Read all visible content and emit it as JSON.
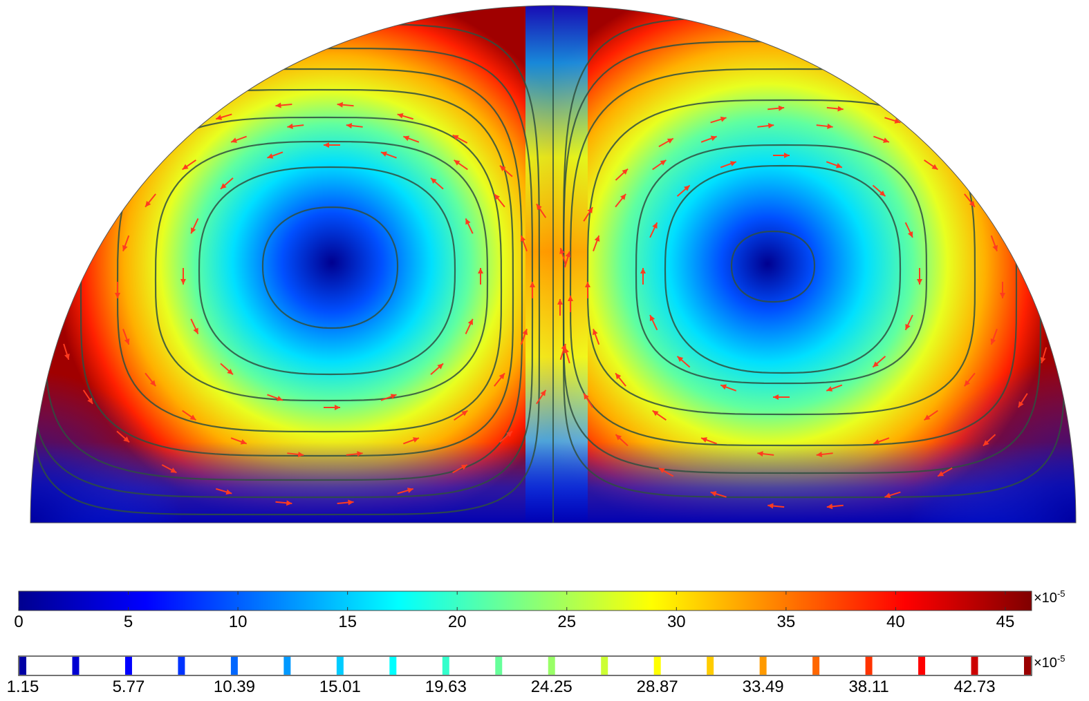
{
  "figure": {
    "description_free": true,
    "field_colormap": [
      "#00008f",
      "#0000ff",
      "#0080ff",
      "#00ffff",
      "#80ff80",
      "#ffff00",
      "#ff8000",
      "#ff0000",
      "#800000"
    ],
    "streamline_color": "#2f4f3f",
    "arrow_color": "#ff3b1f"
  },
  "colorbar": {
    "ticks": [
      "0",
      "5",
      "10",
      "15",
      "20",
      "25",
      "30",
      "35",
      "40",
      "45"
    ],
    "tick_values": [
      0,
      5,
      10,
      15,
      20,
      25,
      30,
      35,
      40,
      45
    ],
    "range": [
      0,
      46.2
    ],
    "exponent_prefix": "×10",
    "exponent": "-5"
  },
  "contour_legend": {
    "labels": [
      "1.15",
      "5.77",
      "10.39",
      "15.01",
      "19.63",
      "24.25",
      "28.87",
      "33.49",
      "38.11",
      "42.73"
    ],
    "levels": [
      1.15,
      3.46,
      5.77,
      8.08,
      10.39,
      12.7,
      15.01,
      17.32,
      19.63,
      21.94,
      24.25,
      26.56,
      28.87,
      31.18,
      33.49,
      35.8,
      38.11,
      40.42,
      42.73,
      45.04
    ],
    "exponent_prefix": "×10",
    "exponent": "-5"
  }
}
